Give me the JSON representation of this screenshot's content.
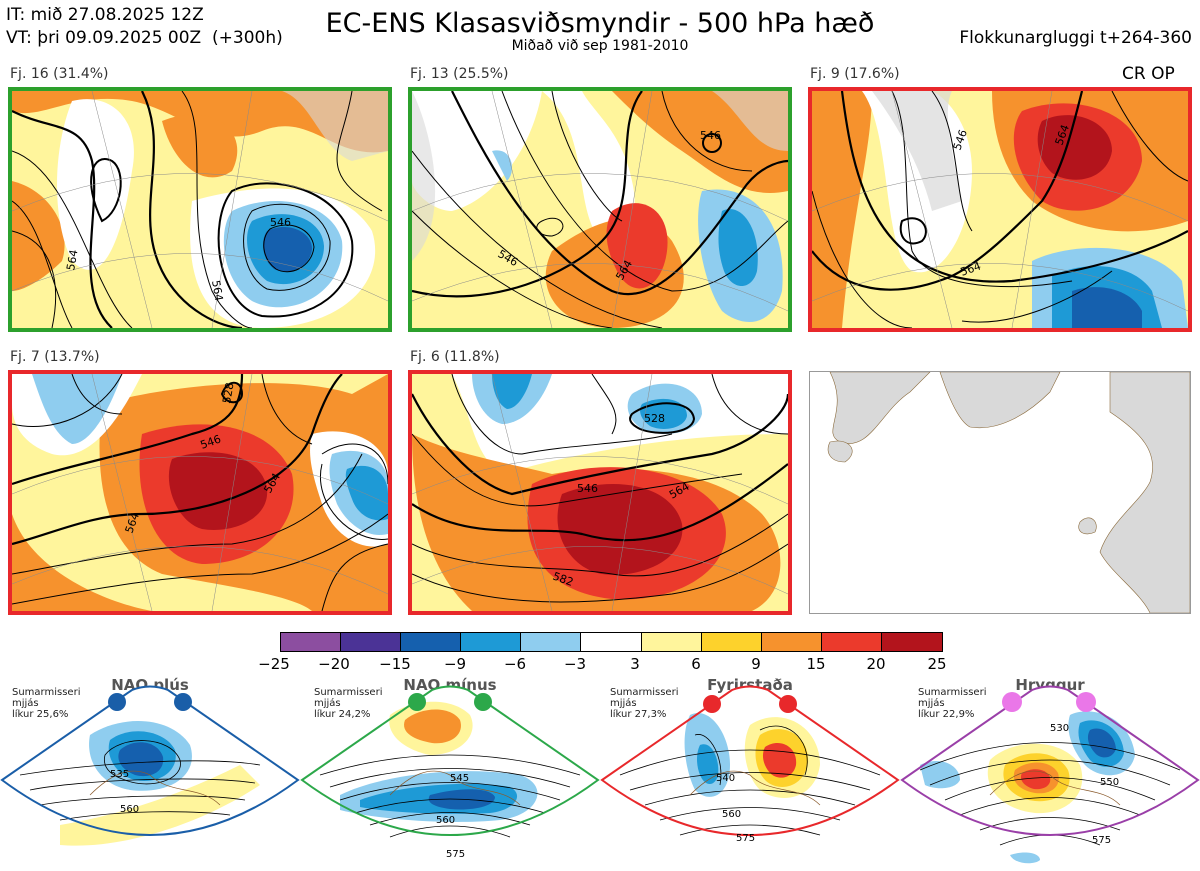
{
  "header": {
    "it_line": "IT: mið 27.08.2025 12Z",
    "vt_line": "VT: þri 09.09.2025 00Z  (+300h)",
    "title": "EC-ENS Klasasviðsmyndir - 500 hPa hæð",
    "subtitle": "Miðað við sep 1981-2010",
    "window": "Flokkunargluggi t+264-360"
  },
  "clusters": [
    {
      "label": "Fj. 16 (31.4%)",
      "frame_color": "#2ca02c",
      "contours": [
        "546",
        "564"
      ]
    },
    {
      "label": "Fj. 13 (25.5%)",
      "frame_color": "#2ca02c",
      "contours": [
        "546",
        "564"
      ]
    },
    {
      "label": "Fj. 9 (17.6%)",
      "frame_color": "#e8282b",
      "tag": "CR OP",
      "contours": [
        "546",
        "564"
      ]
    },
    {
      "label": "Fj. 7 (13.7%)",
      "frame_color": "#e8282b",
      "contours": [
        "546",
        "564",
        "528"
      ]
    },
    {
      "label": "Fj. 6 (11.8%)",
      "frame_color": "#e8282b",
      "contours": [
        "528",
        "546",
        "564",
        "582"
      ]
    }
  ],
  "colorbar": {
    "ticks": [
      "−25",
      "−20",
      "−15",
      "−9",
      "−6",
      "−3",
      "3",
      "6",
      "9",
      "15",
      "20",
      "25"
    ],
    "colors": [
      "#8c4ea0",
      "#4b3396",
      "#1560ae",
      "#1e9ad6",
      "#8fcdef",
      "#ffffff",
      "#fff59c",
      "#fdd22c",
      "#f6922d",
      "#eb3a2c",
      "#b3141c"
    ]
  },
  "regimes": [
    {
      "title": "NAO plús",
      "season": "Sumarmisseri\nmjjás\nlíkur 25,6%",
      "color": "#1a5ea8",
      "labels": [
        "535",
        "560"
      ]
    },
    {
      "title": "NAO mínus",
      "season": "Sumarmisseri\nmjjás\nlíkur 24,2%",
      "color": "#2ca84a",
      "labels": [
        "545",
        "560",
        "575"
      ]
    },
    {
      "title": "Fyrirstaða",
      "season": "Sumarmisseri\nmjjás\nlíkur 27,3%",
      "color": "#e8282b",
      "labels": [
        "540",
        "560",
        "575"
      ]
    },
    {
      "title": "Hryggur",
      "season": "Sumarmisseri\nmjjás\nlíkur 22,9%",
      "color": "#9a3fa8",
      "dot_color": "#ea77e8",
      "labels": [
        "530",
        "550",
        "575"
      ]
    }
  ]
}
